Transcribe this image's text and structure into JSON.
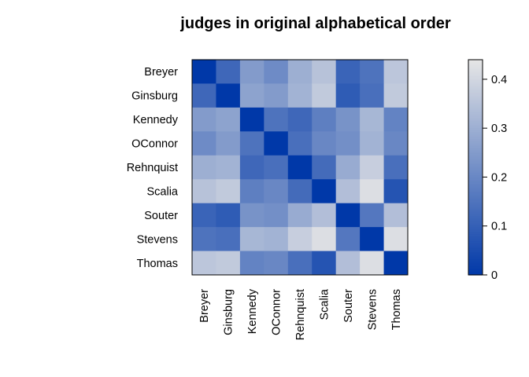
{
  "chart_data": {
    "type": "heatmap",
    "title": "judges in original alphabetical order",
    "rows": [
      "Breyer",
      "Ginsburg",
      "Kennedy",
      "OConnor",
      "Rehnquist",
      "Scalia",
      "Souter",
      "Stevens",
      "Thomas"
    ],
    "cols": [
      "Breyer",
      "Ginsburg",
      "Kennedy",
      "OConnor",
      "Rehnquist",
      "Scalia",
      "Souter",
      "Stevens",
      "Thomas"
    ],
    "values": [
      [
        0.0,
        0.12,
        0.25,
        0.21,
        0.3,
        0.35,
        0.11,
        0.15,
        0.36
      ],
      [
        0.12,
        0.0,
        0.27,
        0.25,
        0.31,
        0.37,
        0.09,
        0.14,
        0.37
      ],
      [
        0.25,
        0.27,
        0.0,
        0.15,
        0.12,
        0.18,
        0.23,
        0.32,
        0.19
      ],
      [
        0.21,
        0.25,
        0.15,
        0.0,
        0.14,
        0.2,
        0.22,
        0.31,
        0.2
      ],
      [
        0.3,
        0.31,
        0.12,
        0.14,
        0.0,
        0.13,
        0.29,
        0.38,
        0.14
      ],
      [
        0.35,
        0.37,
        0.18,
        0.2,
        0.13,
        0.0,
        0.34,
        0.42,
        0.07
      ],
      [
        0.11,
        0.09,
        0.23,
        0.22,
        0.29,
        0.34,
        0.0,
        0.16,
        0.34
      ],
      [
        0.15,
        0.14,
        0.32,
        0.31,
        0.38,
        0.42,
        0.16,
        0.0,
        0.42
      ],
      [
        0.36,
        0.37,
        0.19,
        0.2,
        0.14,
        0.07,
        0.34,
        0.42,
        0.0
      ]
    ],
    "zlim": [
      0,
      0.44
    ],
    "colorbar_ticks": [
      0,
      0.1,
      0.2,
      0.3,
      0.4
    ],
    "colorbar_tick_labels": [
      "0",
      "0.1",
      "0.2",
      "0.3",
      "0.4"
    ],
    "color_low": "#0038A8",
    "color_high": "#E6E6E6",
    "grid": false,
    "legend": "right colorbar"
  }
}
